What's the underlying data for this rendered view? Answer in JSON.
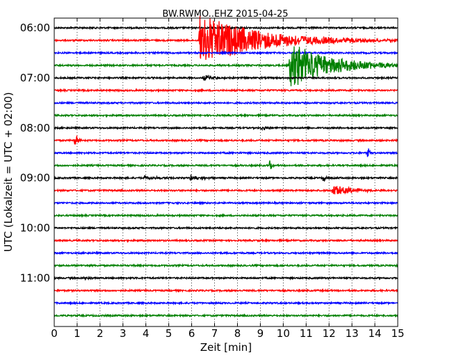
{
  "chart_data": {
    "type": "line",
    "title": "BW.RWMO..EHZ 2015-04-25",
    "xlabel": "Zeit  [min]",
    "ylabel": "UTC (Lokalzeit = UTC + 02:00)",
    "xlim": [
      0,
      15
    ],
    "x_ticks": [
      "0",
      "1",
      "2",
      "3",
      "4",
      "5",
      "6",
      "7",
      "8",
      "9",
      "10",
      "11",
      "12",
      "13",
      "14",
      "15"
    ],
    "y_tick_labels": [
      "06:00",
      "07:00",
      "08:00",
      "09:00",
      "10:00",
      "11:00"
    ],
    "grid": "vertical dotted",
    "trace_colors": [
      "#000000",
      "#ff0000",
      "#0000ff",
      "#008000"
    ],
    "traces": [
      {
        "start": "06:00",
        "color": "#000000",
        "events": []
      },
      {
        "start": "06:15",
        "color": "#ff0000",
        "events": [
          {
            "t_min": 6.3,
            "amp": 1.0,
            "decay_min": 2.6,
            "dur_min": 8.7
          }
        ]
      },
      {
        "start": "06:30",
        "color": "#0000ff",
        "events": []
      },
      {
        "start": "06:45",
        "color": "#008000",
        "events": [
          {
            "t_min": 10.25,
            "amp": 0.9,
            "decay_min": 1.8,
            "dur_min": 4.75
          }
        ]
      },
      {
        "start": "07:00",
        "color": "#000000",
        "events": [
          {
            "t_min": 6.5,
            "amp": 0.12,
            "decay_min": 0.4,
            "dur_min": 1.5
          }
        ]
      },
      {
        "start": "07:15",
        "color": "#ff0000",
        "events": []
      },
      {
        "start": "07:30",
        "color": "#0000ff",
        "events": []
      },
      {
        "start": "07:45",
        "color": "#008000",
        "events": []
      },
      {
        "start": "08:00",
        "color": "#000000",
        "events": [
          {
            "t_min": 9.0,
            "amp": 0.08,
            "decay_min": 0.5,
            "dur_min": 1.0
          }
        ]
      },
      {
        "start": "08:15",
        "color": "#ff0000",
        "events": [
          {
            "t_min": 0.85,
            "amp": 0.35,
            "decay_min": 0.15,
            "dur_min": 0.5
          }
        ]
      },
      {
        "start": "08:30",
        "color": "#0000ff",
        "events": [
          {
            "t_min": 13.65,
            "amp": 0.4,
            "decay_min": 0.08,
            "dur_min": 0.25
          }
        ]
      },
      {
        "start": "08:45",
        "color": "#008000",
        "events": [
          {
            "t_min": 9.38,
            "amp": 0.45,
            "decay_min": 0.08,
            "dur_min": 0.25
          }
        ]
      },
      {
        "start": "09:00",
        "color": "#000000",
        "events": [
          {
            "t_min": 3.9,
            "amp": 0.08,
            "decay_min": 0.6,
            "dur_min": 1.5
          },
          {
            "t_min": 5.9,
            "amp": 0.12,
            "decay_min": 0.5,
            "dur_min": 1.2
          },
          {
            "t_min": 11.7,
            "amp": 0.2,
            "decay_min": 0.1,
            "dur_min": 0.3
          }
        ]
      },
      {
        "start": "09:15",
        "color": "#ff0000",
        "events": [
          {
            "t_min": 12.1,
            "amp": 0.25,
            "decay_min": 0.8,
            "dur_min": 2.8
          }
        ]
      },
      {
        "start": "09:30",
        "color": "#0000ff",
        "events": []
      },
      {
        "start": "09:45",
        "color": "#008000",
        "events": []
      },
      {
        "start": "10:00",
        "color": "#000000",
        "events": []
      },
      {
        "start": "10:15",
        "color": "#ff0000",
        "events": []
      },
      {
        "start": "10:30",
        "color": "#0000ff",
        "events": []
      },
      {
        "start": "10:45",
        "color": "#008000",
        "events": []
      },
      {
        "start": "11:00",
        "color": "#000000",
        "events": [
          {
            "t_min": 1.25,
            "amp": 0.08,
            "decay_min": 0.2,
            "dur_min": 0.6
          }
        ]
      },
      {
        "start": "11:15",
        "color": "#ff0000",
        "events": []
      },
      {
        "start": "11:30",
        "color": "#0000ff",
        "events": []
      },
      {
        "start": "11:45",
        "color": "#008000",
        "events": []
      }
    ]
  }
}
